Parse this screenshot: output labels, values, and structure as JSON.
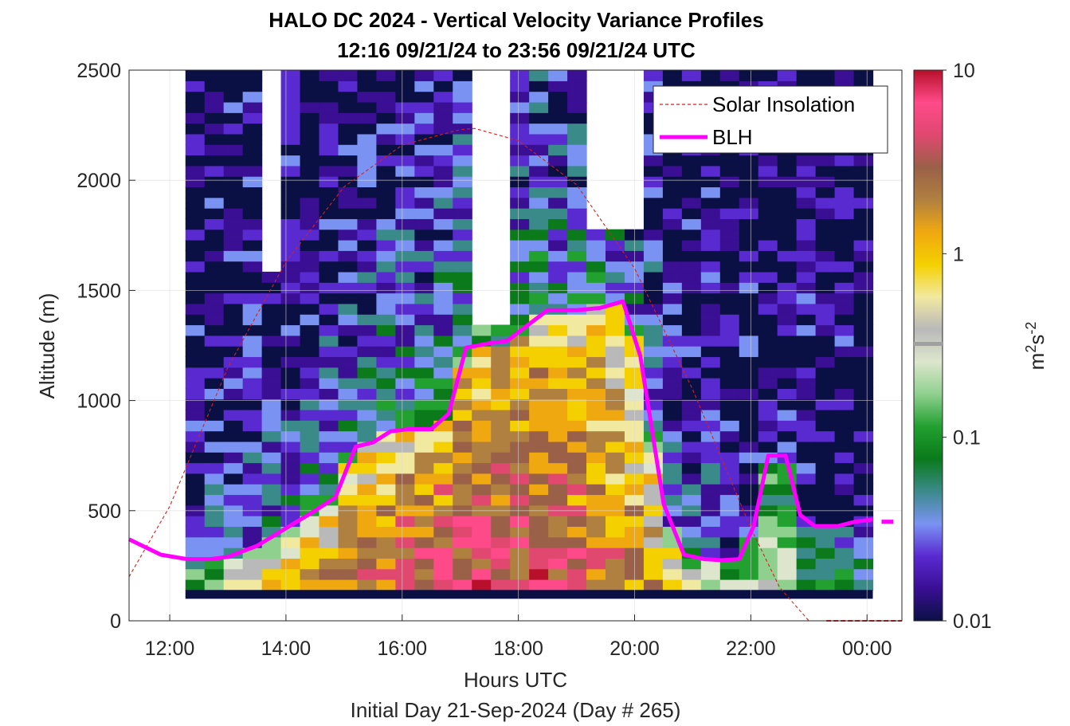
{
  "chart_data": {
    "type": "heatmap",
    "title": "HALO DC 2024 - Vertical Velocity Variance Profiles",
    "subtitle": "12:16 09/21/24 to 23:56 09/21/24  UTC",
    "xlabel": "Hours UTC",
    "ylabel": "Altitude (m)",
    "footer": "Initial Day 21-Sep-2024 (Day # 265)",
    "xlim_hours": [
      11.3,
      24.6
    ],
    "ylim": [
      0,
      2500
    ],
    "x_ticks": [
      12,
      14,
      16,
      18,
      20,
      22,
      24
    ],
    "x_tick_labels": [
      "12:00",
      "14:00",
      "16:00",
      "18:00",
      "20:00",
      "22:00",
      "00:00"
    ],
    "y_ticks": [
      0,
      500,
      1000,
      1500,
      2000,
      2500
    ],
    "y_tick_labels": [
      "0",
      "500",
      "1000",
      "1500",
      "2000",
      "2500"
    ],
    "grid": true,
    "legend_position": "top-right",
    "colorbar": {
      "label": "m²s⁻²",
      "label_base": "m",
      "label_sup1": "2",
      "label_mid": "s",
      "label_sup2": "-2",
      "scale": "log",
      "range": [
        0.01,
        10
      ],
      "ticks": [
        0.01,
        0.1,
        1,
        10
      ],
      "tick_labels": [
        "0.01",
        "0.1",
        "1",
        "10"
      ],
      "colors": [
        "#0b1044",
        "#3a0f94",
        "#5a2ad1",
        "#7a93f2",
        "#3b8a8a",
        "#0a7a1a",
        "#22a030",
        "#8fd08f",
        "#dde6cc",
        "#b9b9b9",
        "#f2e9a0",
        "#f4d000",
        "#f0a810",
        "#b08040",
        "#9a6048",
        "#e04870",
        "#ff4a8a",
        "#b8102a"
      ]
    },
    "series": [
      {
        "name": "Solar Insolation",
        "style": "dashed",
        "color": "#d42020",
        "x": [
          11.3,
          12.0,
          13.0,
          14.0,
          15.0,
          16.0,
          17.0,
          17.25,
          18.0,
          19.0,
          20.0,
          21.0,
          22.0,
          22.5,
          23.0,
          23.3,
          24.6
        ],
        "y": [
          200,
          520,
          1150,
          1630,
          1970,
          2160,
          2230,
          2235,
          2180,
          1980,
          1600,
          1050,
          420,
          150,
          0,
          0,
          0
        ]
      },
      {
        "name": "BLH",
        "style": "solid",
        "color": "#ff00ff",
        "x": [
          11.3,
          11.85,
          12.3,
          12.7,
          13.0,
          13.5,
          14.0,
          14.5,
          14.85,
          15.2,
          15.5,
          15.8,
          16.1,
          16.5,
          16.8,
          17.1,
          17.5,
          17.8,
          18.2,
          18.5,
          19.0,
          19.4,
          19.8,
          20.1,
          20.5,
          20.85,
          21.2,
          21.5,
          21.8,
          22.05,
          22.3,
          22.6,
          22.85,
          23.1,
          23.5,
          23.8,
          24.1
        ],
        "y": [
          370,
          300,
          280,
          280,
          290,
          340,
          420,
          500,
          560,
          790,
          810,
          860,
          870,
          870,
          940,
          1240,
          1260,
          1270,
          1350,
          1410,
          1410,
          1420,
          1450,
          1200,
          530,
          300,
          280,
          275,
          280,
          430,
          750,
          750,
          480,
          430,
          430,
          450,
          460
        ]
      },
      {
        "name": "",
        "style": "dashed",
        "color": "#d42020",
        "x": [
          23.3,
          24.6
        ],
        "y": [
          0,
          0
        ]
      }
    ],
    "heatmap_values": {
      "x_start_hours": 12.27,
      "x_end_hours": 24.1,
      "y_start_m": 100,
      "y_end_m": 2500,
      "units": "m2 s-2",
      "note_regions": [
        {
          "x": [
            12.27,
            24.1
          ],
          "y": [
            100,
            140
          ],
          "value": 0.01
        },
        {
          "x": [
            17.2,
            17.8
          ],
          "y": [
            1340,
            2500
          ],
          "value": null
        },
        {
          "x": [
            19.2,
            20.3
          ],
          "y": [
            1800,
            2500
          ],
          "value": null
        }
      ]
    }
  }
}
